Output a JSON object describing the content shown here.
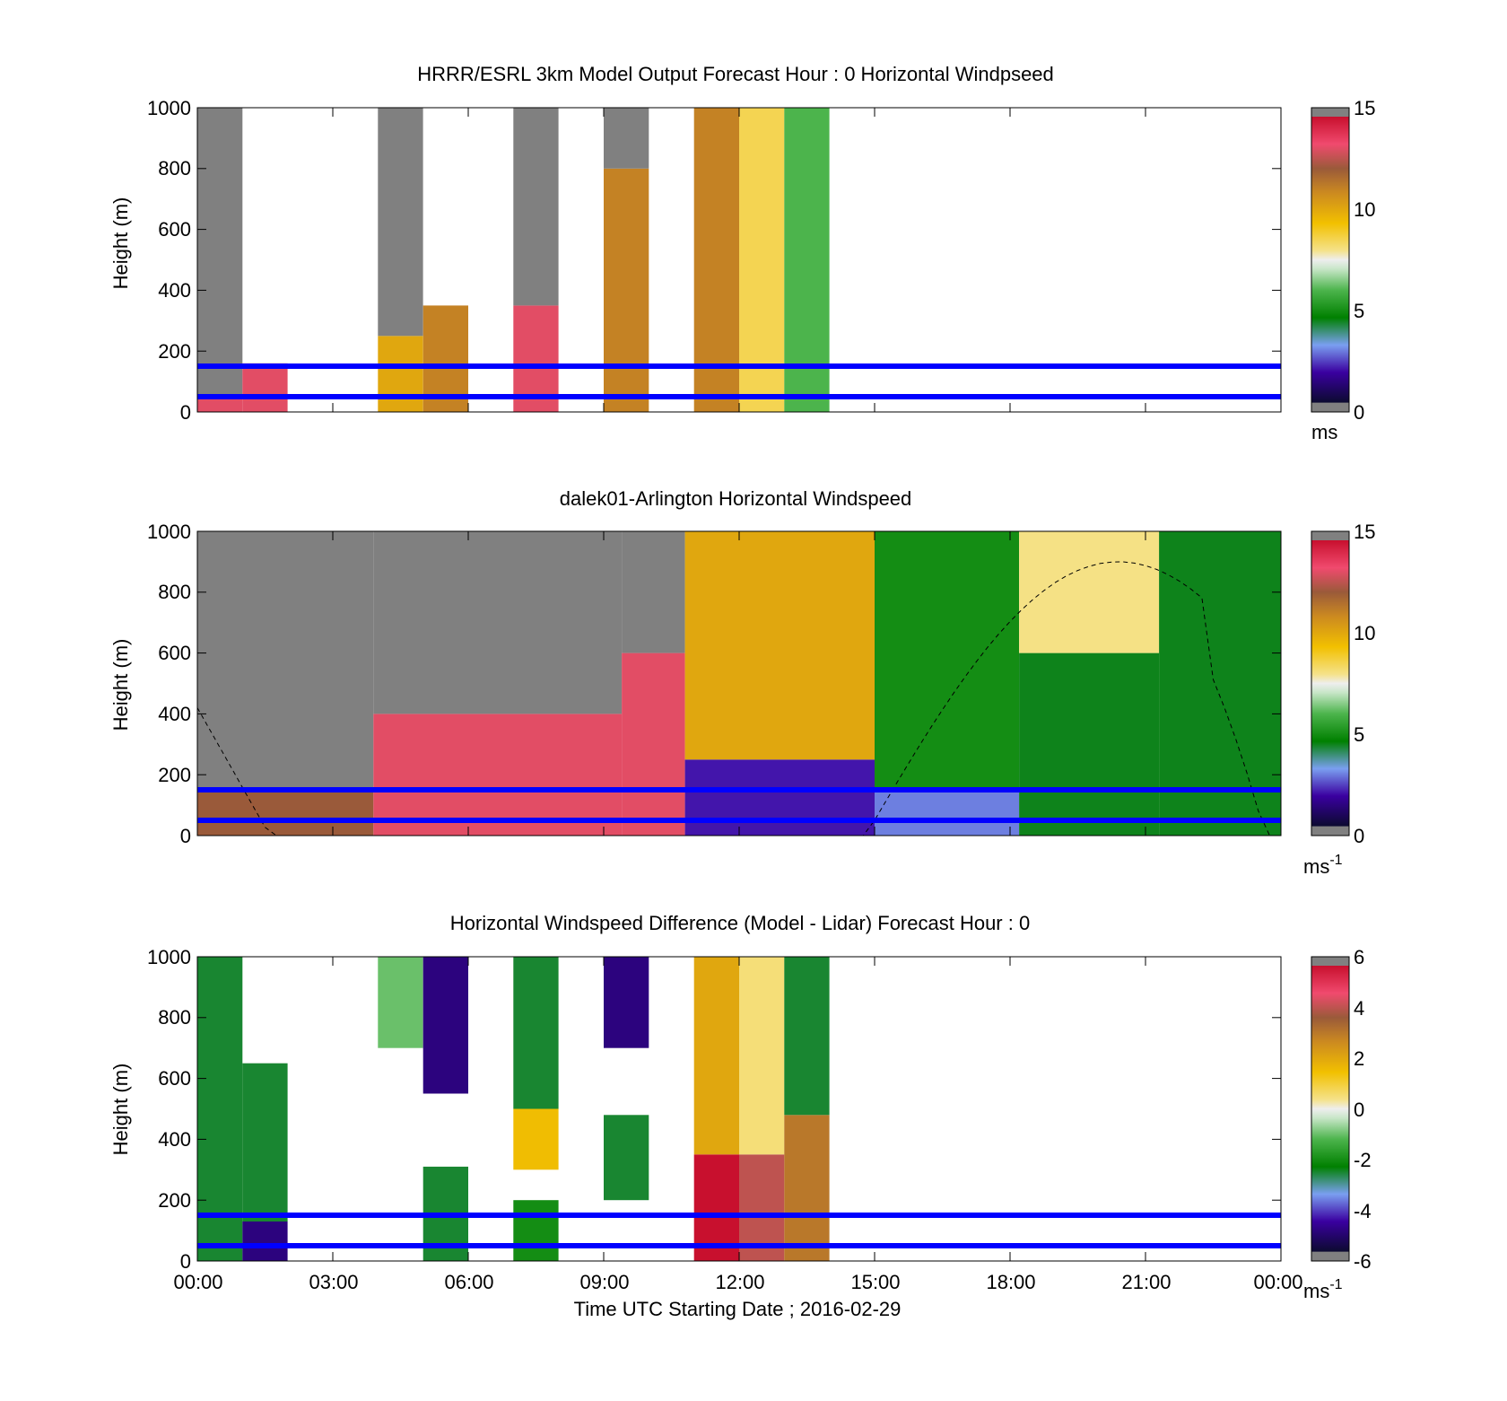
{
  "figure": {
    "xlabel": "Time UTC  Starting Date ; 2016-02-29",
    "xticks": [
      "00:00",
      "03:00",
      "06:00",
      "09:00",
      "12:00",
      "15:00",
      "18:00",
      "21:00",
      "00:00"
    ]
  },
  "chart_data": [
    {
      "type": "heatmap",
      "title": "HRRR/ESRL 3km Model Output   Forecast Hour : 0 Horizontal Windpseed",
      "ylabel": "Height (m)",
      "yticks": [
        "0",
        "200",
        "400",
        "600",
        "800",
        "1000"
      ],
      "xlim_hours": [
        0,
        24
      ],
      "ylim": [
        0,
        1000
      ],
      "colorbar": {
        "ticks": [
          "0",
          "5",
          "10",
          "15"
        ],
        "unit": "ms",
        "range": [
          0,
          15
        ]
      },
      "reference_lines_m": [
        50,
        150
      ],
      "reference_line_color": "#0000ff",
      "columns": [
        {
          "hour": 0.5,
          "profile": [
            [
              0,
              45,
              13
            ],
            [
              45,
              1000,
              "missing"
            ]
          ]
        },
        {
          "hour": 1.5,
          "profile": [
            [
              0,
              160,
              13
            ]
          ]
        },
        {
          "hour": 4.5,
          "profile": [
            [
              0,
              250,
              10
            ],
            [
              250,
              1000,
              "missing"
            ]
          ]
        },
        {
          "hour": 5.5,
          "profile": [
            [
              0,
              350,
              11
            ]
          ]
        },
        {
          "hour": 7.5,
          "profile": [
            [
              0,
              350,
              13
            ],
            [
              350,
              1000,
              "missing"
            ]
          ]
        },
        {
          "hour": 9.5,
          "profile": [
            [
              0,
              800,
              11
            ],
            [
              800,
              1000,
              "missing"
            ]
          ]
        },
        {
          "hour": 11.5,
          "profile": [
            [
              0,
              1000,
              11
            ]
          ]
        },
        {
          "hour": 12.5,
          "profile": [
            [
              0,
              1000,
              8.5
            ]
          ]
        },
        {
          "hour": 13.5,
          "profile": [
            [
              0,
              1000,
              6
            ]
          ]
        }
      ]
    },
    {
      "type": "heatmap",
      "title": "dalek01-Arlington  Horizontal Windspeed",
      "ylabel": "Height (m)",
      "yticks": [
        "0",
        "200",
        "400",
        "600",
        "800",
        "1000"
      ],
      "xlim_hours": [
        0,
        24
      ],
      "ylim": [
        0,
        1000
      ],
      "colorbar": {
        "ticks": [
          "0",
          "5",
          "10",
          "15"
        ],
        "unit": "ms",
        "unit_exp": "-1",
        "range": [
          0,
          15
        ]
      },
      "reference_lines_m": [
        50,
        150
      ],
      "reference_line_color": "#0000ff",
      "dashed_curve": "boundary-layer height (black dashed)",
      "regions_hours": [
        {
          "from": 0,
          "to": 3.9,
          "profile": [
            [
              0,
              150,
              12
            ],
            [
              150,
              1000,
              "missing"
            ]
          ]
        },
        {
          "from": 3.9,
          "to": 9.4,
          "profile": [
            [
              0,
              400,
              13
            ],
            [
              400,
              1000,
              "missing"
            ]
          ]
        },
        {
          "from": 9.4,
          "to": 10.8,
          "profile": [
            [
              0,
              600,
              13
            ],
            [
              600,
              1000,
              "missing"
            ]
          ]
        },
        {
          "from": 10.8,
          "to": 15,
          "profile": [
            [
              0,
              250,
              2
            ],
            [
              250,
              1000,
              10
            ]
          ]
        },
        {
          "from": 15,
          "to": 18.2,
          "profile": [
            [
              0,
              150,
              3
            ],
            [
              150,
              1000,
              5
            ]
          ]
        },
        {
          "from": 18.2,
          "to": 21.3,
          "profile": [
            [
              0,
              600,
              4.5
            ],
            [
              600,
              1000,
              8
            ]
          ]
        },
        {
          "from": 21.3,
          "to": 24,
          "profile": [
            [
              0,
              1000,
              4.5
            ]
          ]
        }
      ]
    },
    {
      "type": "heatmap",
      "title": "Horizontal Windspeed Difference (Model - Lidar) Forecast Hour : 0",
      "ylabel": "Height (m)",
      "yticks": [
        "0",
        "200",
        "400",
        "600",
        "800",
        "1000"
      ],
      "xlim_hours": [
        0,
        24
      ],
      "ylim": [
        0,
        1000
      ],
      "colorbar": {
        "ticks": [
          "-6",
          "-4",
          "-2",
          "0",
          "2",
          "4",
          "6"
        ],
        "unit": "ms",
        "unit_exp": "-1",
        "range": [
          -6,
          6
        ]
      },
      "reference_lines_m": [
        50,
        150
      ],
      "reference_line_color": "#0000ff",
      "columns": [
        {
          "hour": 0.5,
          "profile": [
            [
              0,
              1000,
              -2.5
            ]
          ]
        },
        {
          "hour": 1.5,
          "profile": [
            [
              0,
              130,
              -5
            ],
            [
              130,
              650,
              -2.5
            ]
          ]
        },
        {
          "hour": 4.5,
          "profile": [
            [
              700,
              1000,
              -1
            ]
          ]
        },
        {
          "hour": 5.5,
          "profile": [
            [
              0,
              310,
              -2.5
            ],
            [
              550,
              1000,
              -5
            ]
          ]
        },
        {
          "hour": 7.5,
          "profile": [
            [
              0,
              200,
              -2
            ],
            [
              300,
              500,
              1.5
            ],
            [
              500,
              1000,
              -2.5
            ]
          ]
        },
        {
          "hour": 9.5,
          "profile": [
            [
              200,
              480,
              -2.5
            ],
            [
              700,
              1000,
              -5
            ]
          ]
        },
        {
          "hour": 11.5,
          "profile": [
            [
              0,
              350,
              6
            ],
            [
              350,
              1000,
              2
            ]
          ]
        },
        {
          "hour": 12.5,
          "profile": [
            [
              0,
              350,
              4
            ],
            [
              350,
              1000,
              0.5
            ]
          ]
        },
        {
          "hour": 13.5,
          "profile": [
            [
              0,
              480,
              3
            ],
            [
              480,
              1000,
              -2.5
            ]
          ]
        }
      ]
    }
  ]
}
